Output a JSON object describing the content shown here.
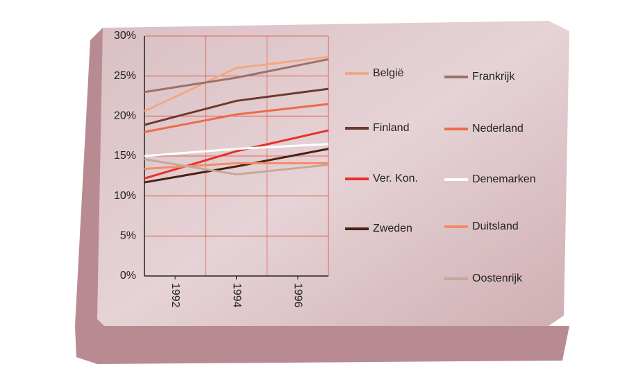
{
  "chart_data": {
    "type": "line",
    "x": [
      1991,
      1994,
      1997
    ],
    "xlim": [
      1991,
      1997
    ],
    "xticks": [
      1992,
      1994,
      1996
    ],
    "xgrid": [
      1993,
      1995,
      1997
    ],
    "ylim": [
      0,
      30
    ],
    "yticks": [
      {
        "value": 0,
        "label": "0%"
      },
      {
        "value": 5,
        "label": "5%"
      },
      {
        "value": 10,
        "label": "10%"
      },
      {
        "value": 15,
        "label": "15%"
      },
      {
        "value": 20,
        "label": "20%"
      },
      {
        "value": 25,
        "label": "25%"
      },
      {
        "value": 30,
        "label": "30%"
      }
    ],
    "grid": true,
    "series": [
      {
        "name": "België",
        "color": "#f4a882",
        "values": [
          20.6,
          26.0,
          27.4
        ]
      },
      {
        "name": "Frankrijk",
        "color": "#9a7366",
        "values": [
          23.0,
          24.8,
          27.1
        ]
      },
      {
        "name": "Finland",
        "color": "#6b3a2a",
        "values": [
          18.9,
          21.9,
          23.4
        ]
      },
      {
        "name": "Nederland",
        "color": "#ec6b4a",
        "values": [
          18.0,
          20.2,
          21.5
        ]
      },
      {
        "name": "Ver. Kon.",
        "color": "#e8302a",
        "values": [
          12.2,
          15.6,
          18.2
        ]
      },
      {
        "name": "Denemarken",
        "color": "#ffffff",
        "values": [
          15.0,
          15.9,
          16.5
        ]
      },
      {
        "name": "Zweden",
        "color": "#4a2010",
        "values": [
          11.7,
          13.7,
          15.9
        ]
      },
      {
        "name": "Duitsland",
        "color": "#f08c6a",
        "values": [
          13.4,
          14.1,
          14.1
        ]
      },
      {
        "name": "Oostenrijk",
        "color": "#c4a89a",
        "values": [
          14.6,
          12.7,
          13.9
        ]
      }
    ]
  }
}
